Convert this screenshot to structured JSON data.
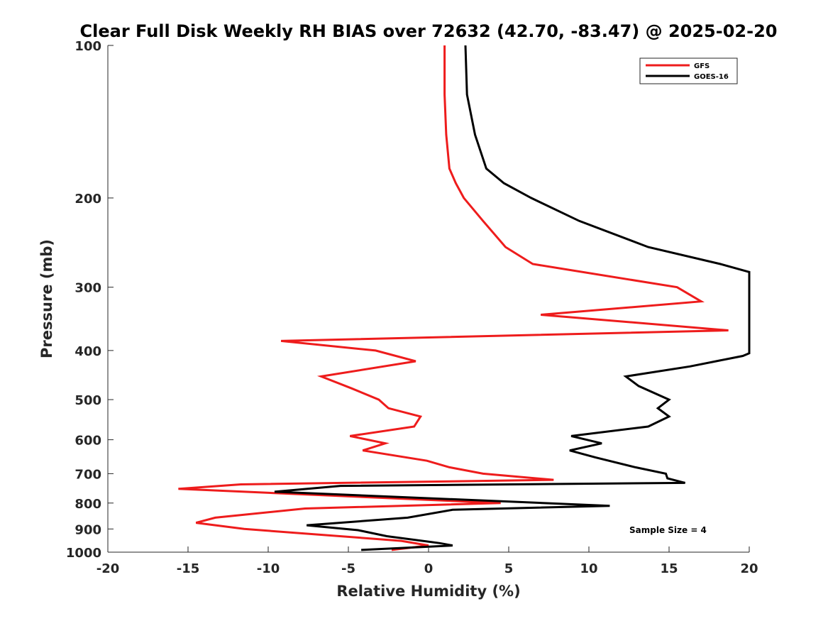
{
  "chart_data": {
    "type": "line",
    "title": "Clear Full Disk Weekly RH BIAS over 72632 (42.70, -83.47) @ 2025-02-20",
    "xlabel": "Relative Humidity (%)",
    "ylabel": "Pressure (mb)",
    "xlim": [
      -20,
      20
    ],
    "ylim": [
      100,
      1000
    ],
    "yscale": "log",
    "y_reversed": true,
    "x_ticks": [
      -20,
      -15,
      -10,
      -5,
      0,
      5,
      10,
      15,
      20
    ],
    "y_ticks": [
      100,
      200,
      300,
      400,
      500,
      600,
      700,
      800,
      900,
      1000
    ],
    "grid": false,
    "legend_position": "top-right",
    "annotation": "Sample Size = 4",
    "series": [
      {
        "name": "GFS",
        "color": "#ee1c1c",
        "points": [
          [
            1.0,
            100
          ],
          [
            1.0,
            125
          ],
          [
            1.1,
            150
          ],
          [
            1.3,
            175
          ],
          [
            1.7,
            187
          ],
          [
            2.2,
            200
          ],
          [
            3.4,
            222
          ],
          [
            4.8,
            250
          ],
          [
            6.5,
            270
          ],
          [
            15.5,
            300
          ],
          [
            17.0,
            320
          ],
          [
            7.0,
            340
          ],
          [
            18.7,
            365
          ],
          [
            -9.2,
            383
          ],
          [
            -3.3,
            400
          ],
          [
            -0.8,
            420
          ],
          [
            -6.7,
            450
          ],
          [
            -4.8,
            475
          ],
          [
            -3.1,
            500
          ],
          [
            -2.5,
            520
          ],
          [
            -0.5,
            540
          ],
          [
            -0.9,
            565
          ],
          [
            -4.9,
            590
          ],
          [
            -2.7,
            610
          ],
          [
            -4.1,
            630
          ],
          [
            -0.1,
            660
          ],
          [
            1.3,
            680
          ],
          [
            3.4,
            700
          ],
          [
            7.8,
            720
          ],
          [
            -11.7,
            735
          ],
          [
            -15.6,
            750
          ],
          [
            4.5,
            800
          ],
          [
            -7.7,
            820
          ],
          [
            -13.3,
            855
          ],
          [
            -14.5,
            875
          ],
          [
            -11.5,
            900
          ],
          [
            -1.7,
            950
          ],
          [
            0.0,
            970
          ],
          [
            -2.3,
            990
          ]
        ]
      },
      {
        "name": "GOES-16",
        "color": "#000000",
        "points": [
          [
            2.3,
            100
          ],
          [
            2.4,
            125
          ],
          [
            2.9,
            150
          ],
          [
            3.6,
            175
          ],
          [
            4.7,
            187
          ],
          [
            6.4,
            200
          ],
          [
            9.4,
            222
          ],
          [
            13.7,
            250
          ],
          [
            18.2,
            270
          ],
          [
            20.0,
            280
          ],
          [
            20.0,
            405
          ],
          [
            19.6,
            410
          ],
          [
            16.3,
            430
          ],
          [
            12.3,
            450
          ],
          [
            13.1,
            470
          ],
          [
            15.0,
            500
          ],
          [
            14.3,
            520
          ],
          [
            15.0,
            540
          ],
          [
            13.7,
            565
          ],
          [
            8.9,
            590
          ],
          [
            10.8,
            610
          ],
          [
            8.8,
            630
          ],
          [
            10.4,
            650
          ],
          [
            12.9,
            680
          ],
          [
            14.8,
            700
          ],
          [
            14.9,
            715
          ],
          [
            16.0,
            730
          ],
          [
            -5.5,
            740
          ],
          [
            -9.6,
            760
          ],
          [
            11.3,
            810
          ],
          [
            1.5,
            825
          ],
          [
            -1.3,
            855
          ],
          [
            -7.6,
            885
          ],
          [
            -4.4,
            905
          ],
          [
            -2.6,
            930
          ],
          [
            0.7,
            960
          ],
          [
            1.5,
            970
          ],
          [
            -4.2,
            990
          ]
        ]
      }
    ]
  }
}
